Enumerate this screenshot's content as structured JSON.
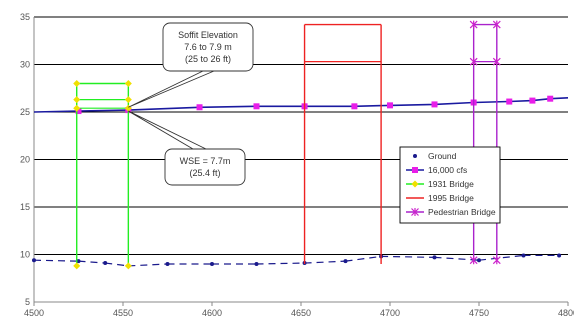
{
  "chart_data": {
    "type": "line",
    "title": "",
    "xlabel": "",
    "ylabel": "",
    "xlim": [
      4500,
      4800
    ],
    "ylim": [
      5,
      35
    ],
    "xticks": [
      "4500",
      "4550",
      "4600",
      "4650",
      "4700",
      "4750",
      "4800"
    ],
    "yticks": [
      "5",
      "10",
      "15",
      "20",
      "25",
      "30",
      "35"
    ],
    "grid": {
      "horizontal": true,
      "vertical": false
    },
    "legend_position": "right-center",
    "series": [
      {
        "name": "Ground",
        "color": "#1a1a8c",
        "marker": "dot",
        "x": [
          4500,
          4525,
          4540,
          4553,
          4575,
          4600,
          4625,
          4652,
          4675,
          4695,
          4725,
          4750,
          4775,
          4795
        ],
        "y": [
          9.4,
          9.3,
          9.1,
          8.8,
          9.0,
          9.0,
          9.0,
          9.1,
          9.3,
          9.8,
          9.7,
          9.4,
          9.9,
          9.9
        ]
      },
      {
        "name": "16,000 cfs",
        "color": "#1a1aa0",
        "marker": "square",
        "marker_color": "#e81ee8",
        "x": [
          4500,
          4525,
          4553,
          4593,
          4625,
          4652,
          4680,
          4700,
          4725,
          4747,
          4767,
          4780,
          4790,
          4800
        ],
        "y": [
          25.0,
          25.1,
          25.2,
          25.5,
          25.6,
          25.6,
          25.6,
          25.7,
          25.8,
          26.0,
          26.1,
          26.2,
          26.4,
          26.5
        ]
      },
      {
        "name": "1931 Bridge",
        "color": "#22ee22",
        "marker": "diamond",
        "marker_color": "#f0e000",
        "rect": {
          "x0": 4524,
          "x1": 4553,
          "y0": 8.8,
          "y1": 28.0
        },
        "lines": [
          {
            "x0": 4524,
            "x1": 4553,
            "y": 26.3
          },
          {
            "x0": 4524,
            "x1": 4553,
            "y": 25.4
          }
        ]
      },
      {
        "name": "1995 Bridge",
        "color": "#ee2222",
        "marker": "none",
        "rect": {
          "x0": 4652,
          "x1": 4695,
          "y0": 9.0,
          "y1": 34.2
        },
        "lines": [
          {
            "x0": 4652,
            "x1": 4695,
            "y": 30.3
          }
        ]
      },
      {
        "name": "Pedestrian Bridge",
        "color": "#aa22cc",
        "marker": "star",
        "marker_color": "#cc22cc",
        "rect": {
          "x0": 4747,
          "x1": 4760,
          "y0": 9.4,
          "y1": 34.2
        },
        "lines": [
          {
            "x0": 4747,
            "x1": 4760,
            "y": 30.3
          }
        ]
      }
    ],
    "annotations": [
      {
        "lines": [
          "Soffit Elevation",
          "7.6 to 7.9 m",
          "(25 to 26 ft)"
        ],
        "x": 4553,
        "y": 25.4
      },
      {
        "lines": [
          "WSE = 7.7m",
          "(25.4 ft)"
        ],
        "x": 4553,
        "y": 25.2
      }
    ]
  }
}
